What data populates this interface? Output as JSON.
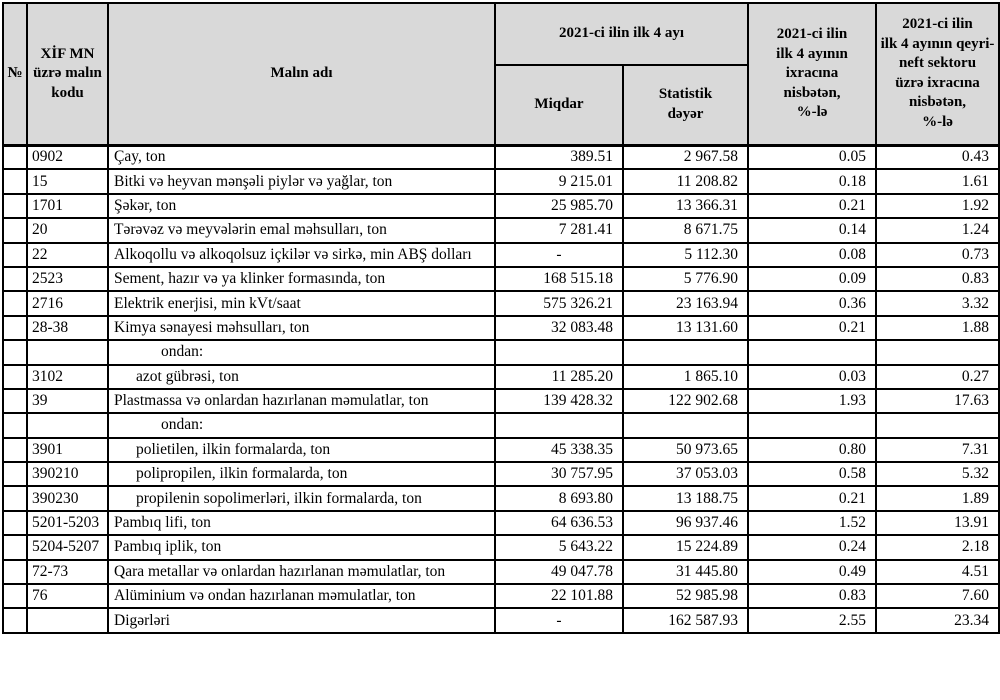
{
  "colors": {
    "header_bg": "#d9d9d9",
    "border": "#000000",
    "text": "#000000",
    "page_bg": "#ffffff"
  },
  "table": {
    "headers": {
      "num": "№",
      "code": "XİF MN\nüzrə malın\nkodu",
      "name": "Malın adı",
      "period_group": "2021-ci ilin ilk 4 ayı",
      "quantity": "Miqdar",
      "stat_value": "Statistik\ndəyər",
      "pct_exports": "2021-ci ilin\nilk 4 ayının\nixracına\nnisbətən,\n%-lə",
      "pct_nonoil": "2021-ci ilin\nilk 4 ayının qeyri-\nneft sektoru\nüzrə ixracına\nnisbətən,\n%-lə"
    },
    "rows": [
      {
        "code": "0902",
        "name": "Çay, ton",
        "indent": 0,
        "quantity": "389.51",
        "value": "2 967.58",
        "pct_exports": "0.05",
        "pct_nonoil": "0.43"
      },
      {
        "code": "15",
        "name": "Bitki və heyvan mənşəli piylər və yağlar, ton",
        "indent": 0,
        "quantity": "9 215.01",
        "value": "11 208.82",
        "pct_exports": "0.18",
        "pct_nonoil": "1.61"
      },
      {
        "code": "1701",
        "name": "Şəkər, ton",
        "indent": 0,
        "quantity": "25 985.70",
        "value": "13 366.31",
        "pct_exports": "0.21",
        "pct_nonoil": "1.92"
      },
      {
        "code": "20",
        "name": "Tərəvəz və meyvələrin emal məhsulları, ton",
        "indent": 0,
        "quantity": "7 281.41",
        "value": "8 671.75",
        "pct_exports": "0.14",
        "pct_nonoil": "1.24"
      },
      {
        "code": "22",
        "name": "Alkoqollu və alkoqolsuz içkilər və sirkə, min ABŞ dolları",
        "indent": 0,
        "quantity": "-",
        "value": "5 112.30",
        "pct_exports": "0.08",
        "pct_nonoil": "0.73"
      },
      {
        "code": "2523",
        "name": "Sement, hazır və ya klinker formasında, ton",
        "indent": 0,
        "quantity": "168 515.18",
        "value": "5 776.90",
        "pct_exports": "0.09",
        "pct_nonoil": "0.83"
      },
      {
        "code": "2716",
        "name": "Elektrik enerjisi, min kVt/saat",
        "indent": 0,
        "quantity": "575 326.21",
        "value": "23 163.94",
        "pct_exports": "0.36",
        "pct_nonoil": "3.32"
      },
      {
        "code": "28-38",
        "name": "Kimya sənayesi məhsulları, ton",
        "indent": 0,
        "quantity": "32 083.48",
        "value": "13 131.60",
        "pct_exports": "0.21",
        "pct_nonoil": "1.88"
      },
      {
        "code": "",
        "name": "ondan:",
        "indent": 2,
        "quantity": "",
        "value": "",
        "pct_exports": "",
        "pct_nonoil": ""
      },
      {
        "code": "3102",
        "name": "azot gübrəsi, ton",
        "indent": 1,
        "quantity": "11 285.20",
        "value": "1 865.10",
        "pct_exports": "0.03",
        "pct_nonoil": "0.27"
      },
      {
        "code": "39",
        "name": "Plastmassa və onlardan hazırlanan məmulatlar, ton",
        "indent": 0,
        "quantity": "139 428.32",
        "value": "122 902.68",
        "pct_exports": "1.93",
        "pct_nonoil": "17.63"
      },
      {
        "code": "",
        "name": "ondan:",
        "indent": 2,
        "quantity": "",
        "value": "",
        "pct_exports": "",
        "pct_nonoil": ""
      },
      {
        "code": "3901",
        "name": "polietilen, ilkin formalarda, ton",
        "indent": 1,
        "quantity": "45 338.35",
        "value": "50 973.65",
        "pct_exports": "0.80",
        "pct_nonoil": "7.31"
      },
      {
        "code": "390210",
        "name": "polipropilen, ilkin formalarda, ton",
        "indent": 1,
        "quantity": "30 757.95",
        "value": "37 053.03",
        "pct_exports": "0.58",
        "pct_nonoil": "5.32"
      },
      {
        "code": "390230",
        "name": "propilenin sopolimerləri, ilkin formalarda, ton",
        "indent": 1,
        "quantity": "8 693.80",
        "value": "13 188.75",
        "pct_exports": "0.21",
        "pct_nonoil": "1.89"
      },
      {
        "code": "5201-5203",
        "name": "Pambıq lifi, ton",
        "indent": 0,
        "quantity": "64 636.53",
        "value": "96 937.46",
        "pct_exports": "1.52",
        "pct_nonoil": "13.91"
      },
      {
        "code": "5204-5207",
        "name": "Pambıq iplik, ton",
        "indent": 0,
        "quantity": "5 643.22",
        "value": "15 224.89",
        "pct_exports": "0.24",
        "pct_nonoil": "2.18"
      },
      {
        "code": "72-73",
        "name": "Qara metallar və onlardan hazırlanan məmulatlar, ton",
        "indent": 0,
        "quantity": "49 047.78",
        "value": "31 445.80",
        "pct_exports": "0.49",
        "pct_nonoil": "4.51"
      },
      {
        "code": "76",
        "name": "Alüminium və ondan hazırlanan məmulatlar, ton",
        "indent": 0,
        "quantity": "22 101.88",
        "value": "52 985.98",
        "pct_exports": "0.83",
        "pct_nonoil": "7.60"
      },
      {
        "code": "",
        "name": "Digərləri",
        "indent": 0,
        "quantity": "-",
        "value": "162 587.93",
        "pct_exports": "2.55",
        "pct_nonoil": "23.34"
      }
    ]
  }
}
